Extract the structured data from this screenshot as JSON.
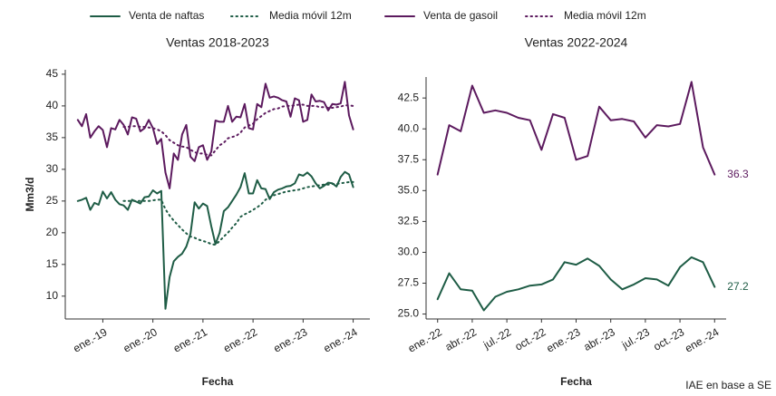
{
  "chart_data": [
    {
      "type": "line",
      "title": "Ventas 2018-2023",
      "x_label": "Fecha",
      "y_label": "Mm3/d",
      "x": [
        "2018-07",
        "2018-08",
        "2018-09",
        "2018-10",
        "2018-11",
        "2018-12",
        "2019-01",
        "2019-02",
        "2019-03",
        "2019-04",
        "2019-05",
        "2019-06",
        "2019-07",
        "2019-08",
        "2019-09",
        "2019-10",
        "2019-11",
        "2019-12",
        "2020-01",
        "2020-02",
        "2020-03",
        "2020-04",
        "2020-05",
        "2020-06",
        "2020-07",
        "2020-08",
        "2020-09",
        "2020-10",
        "2020-11",
        "2020-12",
        "2021-01",
        "2021-02",
        "2021-03",
        "2021-04",
        "2021-05",
        "2021-06",
        "2021-07",
        "2021-08",
        "2021-09",
        "2021-10",
        "2021-11",
        "2021-12",
        "2022-01",
        "2022-02",
        "2022-03",
        "2022-04",
        "2022-05",
        "2022-06",
        "2022-07",
        "2022-08",
        "2022-09",
        "2022-10",
        "2022-11",
        "2022-12",
        "2023-01",
        "2023-02",
        "2023-03",
        "2023-04",
        "2023-05",
        "2023-06",
        "2023-07",
        "2023-08",
        "2023-09",
        "2023-10",
        "2023-11",
        "2023-12",
        "2024-01"
      ],
      "xlim": [
        "2018-04",
        "2024-05"
      ],
      "xticks": [
        {
          "value": "2019-01",
          "label": "ene.-19"
        },
        {
          "value": "2020-01",
          "label": "ene.-20"
        },
        {
          "value": "2021-01",
          "label": "ene.-21"
        },
        {
          "value": "2022-01",
          "label": "ene.-22"
        },
        {
          "value": "2023-01",
          "label": "ene.-23"
        },
        {
          "value": "2024-01",
          "label": "ene.-24"
        }
      ],
      "ylim": [
        6.4,
        45.7
      ],
      "yticks": [
        10,
        15,
        20,
        25,
        30,
        35,
        40,
        45
      ],
      "series": [
        {
          "name": "Venta de naftas",
          "color": "#1e5c45",
          "style": "solid",
          "values": [
            25.0,
            25.2,
            25.5,
            23.6,
            24.7,
            24.4,
            26.5,
            25.4,
            26.4,
            25.2,
            24.5,
            24.3,
            23.6,
            25.2,
            24.9,
            24.6,
            25.6,
            25.7,
            26.7,
            26.2,
            26.6,
            8.0,
            13.0,
            15.5,
            16.2,
            16.7,
            17.8,
            19.8,
            24.8,
            23.8,
            24.6,
            24.2,
            21.0,
            18.2,
            20.0,
            23.4,
            24.0,
            25.0,
            26.0,
            27.2,
            29.4,
            26.2,
            26.2,
            28.3,
            27.0,
            26.9,
            25.3,
            26.4,
            26.8,
            27.0,
            27.3,
            27.4,
            27.8,
            29.2,
            29.0,
            29.5,
            28.9,
            27.8,
            27.0,
            27.4,
            27.9,
            27.8,
            27.3,
            28.8,
            29.6,
            29.2,
            27.2
          ]
        },
        {
          "name": "Media móvil 12m",
          "color": "#1e5c45",
          "style": "dotted",
          "values": [
            null,
            null,
            null,
            null,
            null,
            null,
            null,
            null,
            null,
            null,
            null,
            25.0,
            25.0,
            25.0,
            25.0,
            25.0,
            25.0,
            25.0,
            25.1,
            25.2,
            25.2,
            23.7,
            22.7,
            21.9,
            21.2,
            20.5,
            19.9,
            19.4,
            19.2,
            18.9,
            18.7,
            18.5,
            18.2,
            18.1,
            18.7,
            19.4,
            20.0,
            20.8,
            21.5,
            22.5,
            22.9,
            23.2,
            23.6,
            24.0,
            24.5,
            25.2,
            25.6,
            25.9,
            26.1,
            26.3,
            26.5,
            26.6,
            26.7,
            26.8,
            27.0,
            27.2,
            27.3,
            27.4,
            27.5,
            27.6,
            27.6,
            27.7,
            27.7,
            27.8,
            27.9,
            28.0,
            28.0
          ]
        },
        {
          "name": "Venta de gasoil",
          "color": "#5c1a5e",
          "style": "solid",
          "values": [
            37.8,
            36.8,
            38.7,
            35.0,
            36.0,
            36.8,
            36.2,
            33.5,
            36.5,
            36.3,
            37.8,
            37.0,
            35.5,
            38.2,
            38.0,
            36.0,
            36.5,
            37.8,
            36.5,
            34.0,
            34.8,
            29.5,
            27.0,
            32.5,
            31.5,
            35.5,
            37.0,
            32.0,
            31.3,
            33.5,
            33.8,
            31.5,
            32.8,
            37.7,
            37.5,
            37.5,
            40.0,
            37.5,
            38.3,
            38.2,
            40.3,
            36.5,
            36.3,
            40.3,
            39.8,
            43.5,
            41.3,
            41.5,
            41.3,
            40.9,
            40.7,
            38.3,
            41.2,
            40.9,
            37.5,
            37.8,
            41.8,
            40.7,
            40.8,
            40.6,
            39.3,
            40.3,
            40.2,
            40.4,
            43.8,
            38.5,
            36.3
          ]
        },
        {
          "name": "Media móvil 12m",
          "color": "#5c1a5e",
          "style": "dotted",
          "values": [
            null,
            null,
            null,
            null,
            null,
            null,
            null,
            null,
            null,
            null,
            null,
            36.7,
            36.7,
            36.8,
            36.8,
            36.7,
            36.7,
            36.6,
            36.5,
            36.3,
            36.0,
            35.4,
            34.6,
            34.2,
            33.8,
            33.6,
            33.5,
            33.1,
            32.7,
            32.5,
            32.5,
            32.3,
            32.2,
            33.0,
            33.8,
            34.2,
            34.9,
            35.1,
            35.3,
            35.8,
            36.6,
            36.9,
            37.2,
            37.9,
            38.4,
            38.9,
            39.2,
            39.5,
            39.6,
            39.9,
            40.0,
            40.0,
            40.1,
            40.2,
            40.2,
            40.0,
            40.0,
            40.0,
            39.8,
            39.8,
            39.7,
            39.7,
            39.8,
            39.9,
            40.1,
            40.1,
            40.0
          ]
        }
      ]
    },
    {
      "type": "line",
      "title": "Ventas 2022-2024",
      "x_label": "Fecha",
      "x": [
        "2022-01",
        "2022-02",
        "2022-03",
        "2022-04",
        "2022-05",
        "2022-06",
        "2022-07",
        "2022-08",
        "2022-09",
        "2022-10",
        "2022-11",
        "2022-12",
        "2023-01",
        "2023-02",
        "2023-03",
        "2023-04",
        "2023-05",
        "2023-06",
        "2023-07",
        "2023-08",
        "2023-09",
        "2023-10",
        "2023-11",
        "2023-12",
        "2024-01"
      ],
      "xlim": [
        "2021-12",
        "2024-02"
      ],
      "xticks": [
        {
          "value": "2022-01",
          "label": "ene.-22"
        },
        {
          "value": "2022-04",
          "label": "abr.-22"
        },
        {
          "value": "2022-07",
          "label": "jul.-22"
        },
        {
          "value": "2022-10",
          "label": "oct.-22"
        },
        {
          "value": "2023-01",
          "label": "ene.-23"
        },
        {
          "value": "2023-04",
          "label": "abr.-23"
        },
        {
          "value": "2023-07",
          "label": "jul.-23"
        },
        {
          "value": "2023-10",
          "label": "oct.-23"
        },
        {
          "value": "2024-01",
          "label": "ene.-24"
        }
      ],
      "ylim": [
        24.6,
        44.2
      ],
      "yticks": [
        {
          "value": 25,
          "label": "25.0"
        },
        {
          "value": 27.5,
          "label": "27.5"
        },
        {
          "value": 30,
          "label": "30.0"
        },
        {
          "value": 32.5,
          "label": "32.5"
        },
        {
          "value": 35,
          "label": "35.0"
        },
        {
          "value": 37.5,
          "label": "37.5"
        },
        {
          "value": 40,
          "label": "40.0"
        },
        {
          "value": 42.5,
          "label": "42.5"
        }
      ],
      "end_labels": true,
      "series": [
        {
          "color": "#5c1a5e",
          "style": "solid",
          "values": [
            36.3,
            40.3,
            39.8,
            43.5,
            41.3,
            41.5,
            41.3,
            40.9,
            40.7,
            38.3,
            41.2,
            40.9,
            37.5,
            37.8,
            41.8,
            40.7,
            40.8,
            40.6,
            39.3,
            40.3,
            40.2,
            40.4,
            43.8,
            38.5,
            36.3
          ]
        },
        {
          "color": "#1e5c45",
          "style": "solid",
          "values": [
            26.2,
            28.3,
            27.0,
            26.9,
            25.3,
            26.4,
            26.8,
            27.0,
            27.3,
            27.4,
            27.8,
            29.2,
            29.0,
            29.5,
            28.9,
            27.8,
            27.0,
            27.4,
            27.9,
            27.8,
            27.3,
            28.8,
            29.6,
            29.2,
            27.2
          ]
        }
      ]
    }
  ],
  "source": "IAE en base a SE"
}
